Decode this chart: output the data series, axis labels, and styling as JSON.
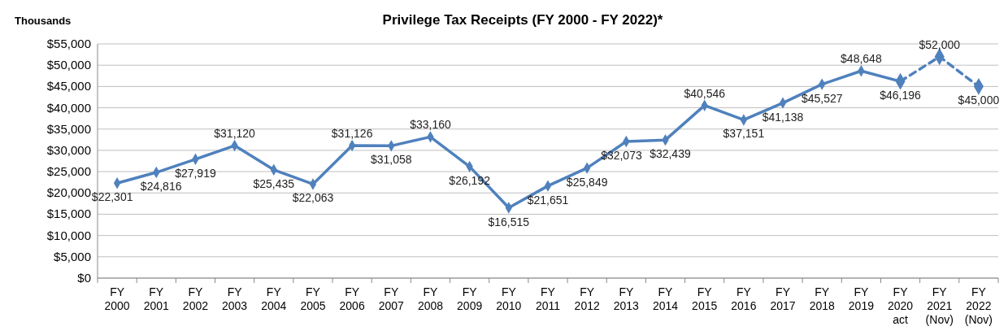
{
  "chart_data": {
    "type": "line",
    "title": "Privilege Tax Receipts (FY 2000 - FY 2022)*",
    "ylabel": "Thousands",
    "categories": [
      "FY\n2000",
      "FY\n2001",
      "FY\n2002",
      "FY\n2003",
      "FY\n2004",
      "FY\n2005",
      "FY\n2006",
      "FY\n2007",
      "FY\n2008",
      "FY\n2009",
      "FY\n2010",
      "FY\n2011",
      "FY\n2012",
      "FY\n2013",
      "FY\n2014",
      "FY\n2015",
      "FY\n2016",
      "FY\n2017",
      "FY\n2018",
      "FY\n2019",
      "FY\n2020\nact",
      "FY\n2021\n(Nov)",
      "FY\n2022\n(Nov)"
    ],
    "series": [
      {
        "color": "#4f81bd",
        "line_style": "solid",
        "values": [
          22301,
          24816,
          27919,
          31120,
          25435,
          22063,
          31126,
          31058,
          33160,
          26192,
          16515,
          21651,
          25849,
          32073,
          32439,
          40546,
          37151,
          41138,
          45527,
          48648,
          46196,
          null,
          null
        ],
        "value_labels": [
          "$22,301",
          "$24,816",
          "$27,919",
          "$31,120",
          "$25,435",
          "$22,063",
          "$31,126",
          "$31,058",
          "$33,160",
          "$26,192",
          "$16,515",
          "$21,651",
          "$25,849",
          "$32,073",
          "$32,439",
          "$40,546",
          "$37,151",
          "$41,138",
          "$45,527",
          "$48,648",
          "$46,196",
          null,
          null
        ]
      },
      {
        "color": "#4f81bd",
        "line_style": "dashed",
        "values": [
          null,
          null,
          null,
          null,
          null,
          null,
          null,
          null,
          null,
          null,
          null,
          null,
          null,
          null,
          null,
          null,
          null,
          null,
          null,
          null,
          46196,
          52000,
          45000
        ],
        "value_labels": [
          null,
          null,
          null,
          null,
          null,
          null,
          null,
          null,
          null,
          null,
          null,
          null,
          null,
          null,
          null,
          null,
          null,
          null,
          null,
          null,
          null,
          "$52,000",
          "$45,000"
        ]
      }
    ],
    "ylim": [
      0,
      55000
    ],
    "yticks": [
      {
        "value": 0,
        "label": "$0"
      },
      {
        "value": 5000,
        "label": "$5,000"
      },
      {
        "value": 10000,
        "label": "$10,000"
      },
      {
        "value": 15000,
        "label": "$15,000"
      },
      {
        "value": 20000,
        "label": "$20,000"
      },
      {
        "value": 25000,
        "label": "$25,000"
      },
      {
        "value": 30000,
        "label": "$30,000"
      },
      {
        "value": 35000,
        "label": "$35,000"
      },
      {
        "value": 40000,
        "label": "$40,000"
      },
      {
        "value": 45000,
        "label": "$45,000"
      },
      {
        "value": 50000,
        "label": "$50,000"
      },
      {
        "value": 55000,
        "label": "$55,000"
      }
    ],
    "grid": "y",
    "marker": "diamond"
  }
}
